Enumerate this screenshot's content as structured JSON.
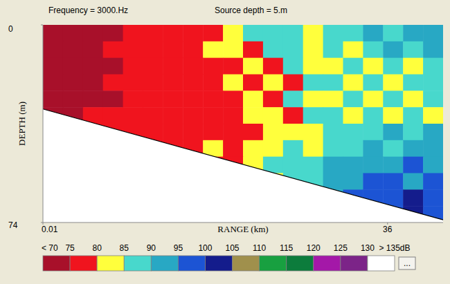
{
  "chart_data": {
    "type": "heatmap",
    "title": "Frequency = 3000.Hz",
    "subtitle": "Source depth = 5.m",
    "x_label": "RANGE (km)",
    "y_label": "DEPTH (m)",
    "xlim": [
      0.01,
      41.8
    ],
    "xticks": [
      0.01,
      36
    ],
    "ylim": [
      0,
      74
    ],
    "yticks": [
      0,
      74
    ],
    "bathymetry": {
      "range": [
        0.01,
        41.8
      ],
      "depth": [
        31.5,
        73
      ]
    },
    "cells": [
      [
        72,
        72,
        73,
        74,
        76,
        76,
        77,
        78,
        79,
        82,
        87,
        86,
        88,
        84,
        87,
        88,
        90,
        86,
        92,
        90
      ],
      [
        71,
        72,
        73,
        75,
        76,
        77,
        76,
        78,
        80,
        83,
        79,
        86,
        88,
        82,
        86,
        84,
        88,
        92,
        87,
        90
      ],
      [
        71,
        72,
        73,
        74,
        76,
        76,
        78,
        77,
        79,
        78,
        82,
        79,
        87,
        83,
        82,
        88,
        83,
        87,
        84,
        89
      ],
      [
        72,
        73,
        73,
        75,
        75,
        77,
        76,
        79,
        78,
        80,
        78,
        84,
        78,
        86,
        88,
        83,
        87,
        82,
        88,
        86
      ],
      [
        73,
        73,
        74,
        74,
        76,
        76,
        77,
        76,
        78,
        79,
        82,
        78,
        86,
        80,
        84,
        88,
        83,
        86,
        82,
        87
      ],
      [
        74,
        74,
        75,
        75,
        76,
        75,
        77,
        78,
        79,
        78,
        80,
        83,
        79,
        87,
        88,
        82,
        89,
        84,
        87,
        83
      ],
      [
        null,
        null,
        75,
        76,
        76,
        75,
        76,
        77,
        78,
        79,
        78,
        81,
        84,
        80,
        86,
        89,
        85,
        92,
        88,
        90
      ],
      [
        null,
        null,
        null,
        null,
        null,
        76,
        77,
        78,
        80,
        79,
        80,
        82,
        86,
        84,
        88,
        87,
        92,
        88,
        93,
        91
      ],
      [
        null,
        null,
        null,
        null,
        null,
        null,
        null,
        null,
        78,
        79,
        83,
        85,
        87,
        89,
        92,
        90,
        94,
        91,
        96,
        92
      ],
      [
        null,
        null,
        null,
        null,
        null,
        null,
        null,
        null,
        null,
        null,
        null,
        84,
        86,
        88,
        90,
        93,
        95,
        98,
        94,
        97
      ],
      [
        null,
        null,
        null,
        null,
        null,
        null,
        null,
        null,
        null,
        null,
        null,
        null,
        null,
        null,
        94,
        97,
        99,
        96,
        100,
        97
      ],
      [
        null,
        null,
        null,
        null,
        null,
        null,
        null,
        null,
        null,
        null,
        null,
        null,
        null,
        null,
        null,
        null,
        null,
        98,
        101,
        99
      ]
    ],
    "colorbar": {
      "ticks": [
        {
          "value": 70,
          "label": "< 70"
        },
        75,
        80,
        85,
        90,
        95,
        100,
        105,
        110,
        115,
        120,
        125,
        130,
        {
          "value": 135,
          "label": "> 135dB"
        }
      ],
      "colors": [
        "#a8102a",
        "#f0141e",
        "#ffff3c",
        "#48d8cc",
        "#28a8c4",
        "#1c54d4",
        "#141c8c",
        "#a0904c",
        "#18a040",
        "#0c7c3c",
        "#a418a8",
        "#7c2488",
        "#ffffff"
      ]
    },
    "button_label": "..."
  }
}
